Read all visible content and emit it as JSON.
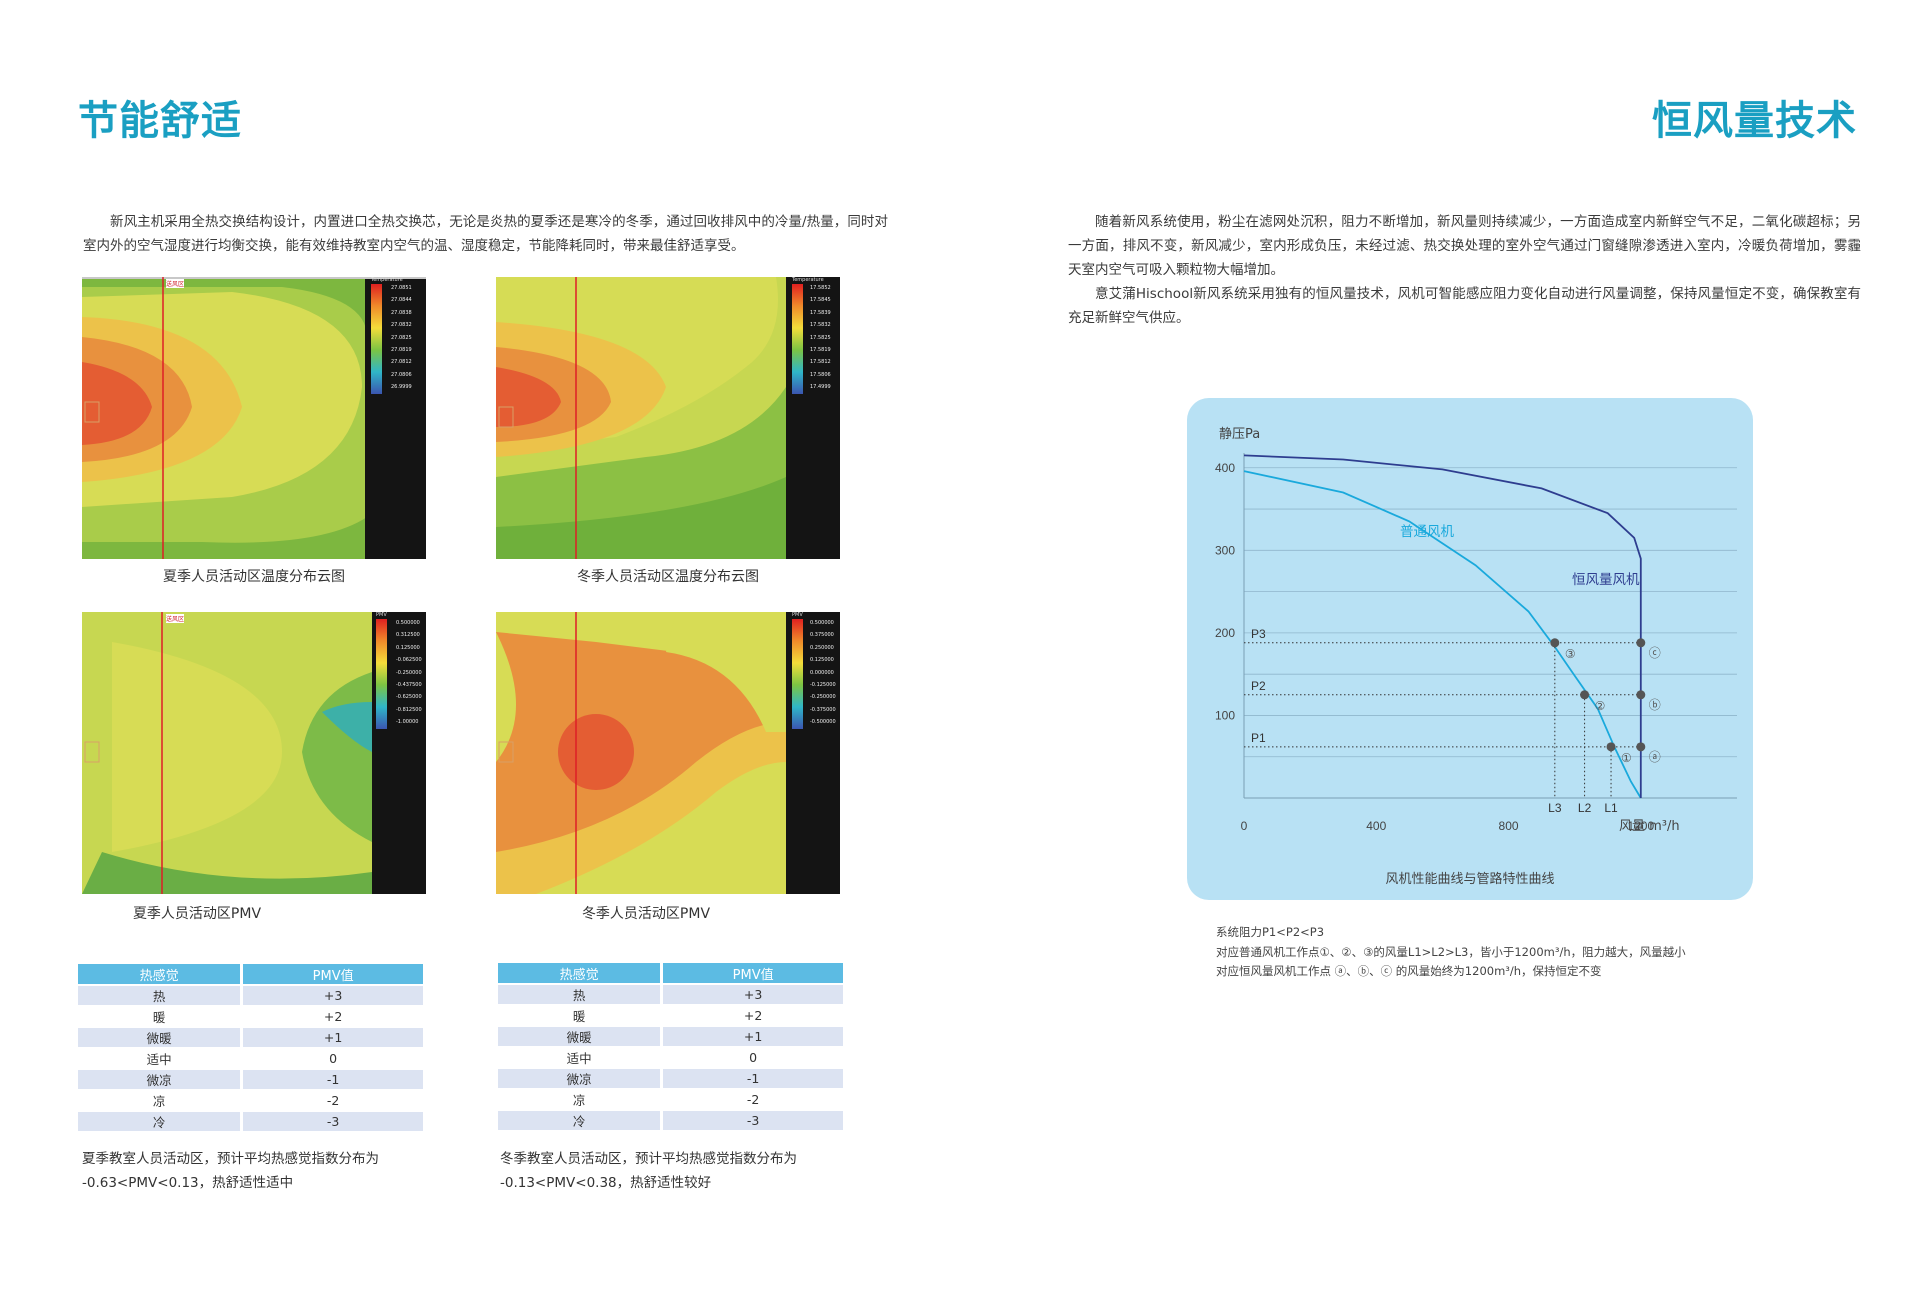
{
  "left": {
    "title": "节能舒适",
    "intro": "新风主机采用全热交换结构设计，内置进口全热交换芯，无论是炎热的夏季还是寒冷的冬季，通过回收排风中的冷量/热量，同时对室内外的空气湿度进行均衡交换，能有效维持教室内空气的温、湿度稳定，节能降耗同时，带来最佳舒适享受。",
    "maps": [
      {
        "caption": "夏季人员活动区温度分布云图",
        "legend_title": "Temperature",
        "legend_values": [
          "27.0851",
          "27.0844",
          "27.0838",
          "27.0832",
          "27.0825",
          "27.0819",
          "27.0812",
          "27.0806",
          "26.9999"
        ],
        "tag": "送风区"
      },
      {
        "caption": "冬季人员活动区温度分布云图",
        "legend_title": "Temperature",
        "legend_values": [
          "17.5852",
          "17.5845",
          "17.5839",
          "17.5832",
          "17.5825",
          "17.5819",
          "17.5812",
          "17.5806",
          "17.4999"
        ],
        "tag": ""
      },
      {
        "caption": "夏季人员活动区PMV",
        "legend_title": "PMV",
        "legend_values": [
          "0.500000",
          "0.312500",
          "0.125000",
          "-0.062500",
          "-0.250000",
          "-0.437500",
          "-0.625000",
          "-0.812500",
          "-1.00000"
        ],
        "tag": "送风区"
      },
      {
        "caption": "冬季人员活动区PMV",
        "legend_title": "PMV",
        "legend_values": [
          "0.500000",
          "0.375000",
          "0.250000",
          "0.125000",
          "0.000000",
          "-0.125000",
          "-0.250000",
          "-0.375000",
          "-0.500000"
        ],
        "tag": ""
      }
    ],
    "table_headers": [
      "热感觉",
      "PMV值"
    ],
    "table_rows": [
      [
        "热",
        "+3"
      ],
      [
        "暖",
        "+2"
      ],
      [
        "微暖",
        "+1"
      ],
      [
        "适中",
        "0"
      ],
      [
        "微凉",
        "-1"
      ],
      [
        "凉",
        "-2"
      ],
      [
        "冷",
        "-3"
      ]
    ],
    "summer_note": [
      "夏季教室人员活动区，预计平均热感觉指数分布为",
      "-0.63<PMV<0.13，热舒适性适中"
    ],
    "winter_note": [
      "冬季教室人员活动区，预计平均热感觉指数分布为",
      "-0.13<PMV<0.38，热舒适性较好"
    ]
  },
  "right": {
    "title": "恒风量技术",
    "intro_1": "随着新风系统使用，粉尘在滤网处沉积，阻力不断增加，新风量则持续减少，一方面造成室内新鲜空气不足，二氧化碳超标；另一方面，排风不变，新风减少，室内形成负压，未经过滤、热交换处理的室外空气通过门窗缝隙渗透进入室内，冷暖负荷增加，雾霾天室内空气可吸入颗粒物大幅增加。",
    "intro_2": "意艾蒲Hischool新风系统采用独有的恒风量技术，风机可智能感应阻力变化自动进行风量调整，保持风量恒定不变，确保教室有充足新鲜空气供应。",
    "notes": [
      "系统阻力P1<P2<P3",
      "对应普通风机工作点①、②、③的风量L1>L2>L3，皆小于1200m³/h，阻力越大，风量越小",
      "对应恒风量风机工作点 ⓐ、ⓑ、ⓒ 的风量始终为1200m³/h，保持恒定不变"
    ]
  },
  "chart_data": {
    "type": "line",
    "title": "风机性能曲线与管路特性曲线",
    "xlabel": "风量 m³/h",
    "ylabel": "静压Pa",
    "xlim": [
      0,
      1500
    ],
    "ylim": [
      0,
      430
    ],
    "x_ticks": [
      "0",
      "400",
      "800",
      "1200"
    ],
    "y_ticks": [
      "100",
      "200",
      "300",
      "400"
    ],
    "grid": true,
    "colors": {
      "normal": "#1aa9dc",
      "constant": "#2e3d8f",
      "point": "#555555"
    },
    "series": [
      {
        "name": "普通风机",
        "x": [
          0,
          300,
          500,
          700,
          860,
          940,
          1000,
          1070,
          1120,
          1170,
          1200
        ],
        "y": [
          396,
          370,
          335,
          282,
          226,
          183,
          148,
          108,
          62,
          20,
          0
        ]
      },
      {
        "name": "恒风量风机",
        "x": [
          0,
          300,
          600,
          900,
          1100,
          1180,
          1200,
          1200
        ],
        "y": [
          415,
          410,
          398,
          375,
          345,
          315,
          290,
          0
        ]
      }
    ],
    "pressure_levels": [
      {
        "label": "P1",
        "y": 62
      },
      {
        "label": "P2",
        "y": 125
      },
      {
        "label": "P3",
        "y": 188
      }
    ],
    "normal_points": [
      {
        "label": "③",
        "x": 940,
        "y": 188,
        "flow": "L3"
      },
      {
        "label": "②",
        "x": 1030,
        "y": 125,
        "flow": "L2"
      },
      {
        "label": "①",
        "x": 1110,
        "y": 62,
        "flow": "L1"
      }
    ],
    "constant_points": [
      {
        "label": "ⓒ",
        "x": 1200,
        "y": 188
      },
      {
        "label": "ⓑ",
        "x": 1200,
        "y": 125
      },
      {
        "label": "ⓐ",
        "x": 1200,
        "y": 62
      }
    ]
  }
}
